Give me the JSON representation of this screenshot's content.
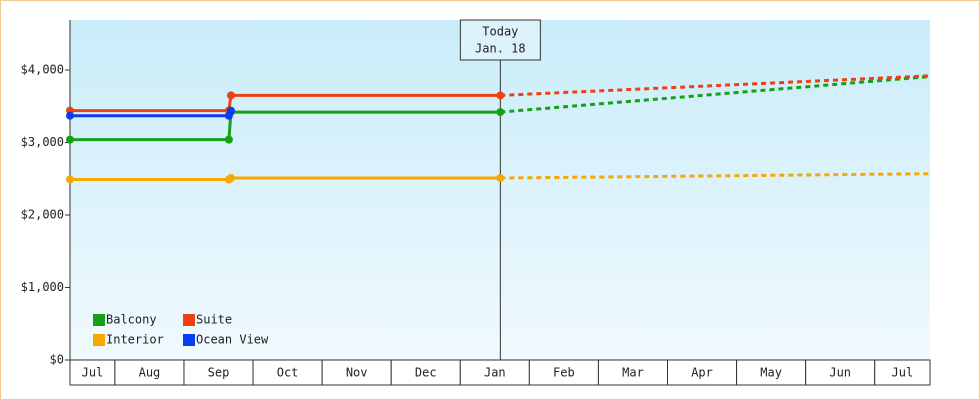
{
  "chart_data": {
    "type": "line",
    "categories": [
      "Jul",
      "Aug",
      "Sep",
      "Oct",
      "Nov",
      "Dec",
      "Jan",
      "Feb",
      "Mar",
      "Apr",
      "May",
      "Jun",
      "Jul"
    ],
    "xlim": [
      0.35,
      12.8
    ],
    "ylim": [
      0,
      4690
    ],
    "yticks": [
      {
        "value": 0,
        "label": "$0"
      },
      {
        "value": 1000,
        "label": "$1,000"
      },
      {
        "value": 2000,
        "label": "$2,000"
      },
      {
        "value": 3000,
        "label": "$3,000"
      },
      {
        "value": 4000,
        "label": "$4,000"
      }
    ],
    "annotation": {
      "lines": [
        "Today",
        "Jan. 18"
      ],
      "x": 6.58
    },
    "series": [
      {
        "name": "Balcony",
        "color": "#16a016",
        "x": [
          0.35,
          2.65,
          2.68,
          6.58,
          12.8
        ],
        "values": [
          3040,
          3040,
          3420,
          3420,
          3910
        ]
      },
      {
        "name": "Suite",
        "color": "#ee4010",
        "x": [
          0.35,
          2.65,
          2.68,
          6.58,
          12.8
        ],
        "values": [
          3440,
          3440,
          3650,
          3650,
          3920
        ]
      },
      {
        "name": "Interior",
        "color": "#f5a800",
        "x": [
          0.35,
          2.65,
          2.68,
          6.58,
          12.8
        ],
        "values": [
          2490,
          2490,
          2510,
          2510,
          2570
        ]
      },
      {
        "name": "Ocean View",
        "color": "#0a3cf5",
        "x": [
          0.35,
          2.65,
          2.68
        ],
        "values": [
          3370,
          3370,
          3440
        ]
      }
    ]
  }
}
